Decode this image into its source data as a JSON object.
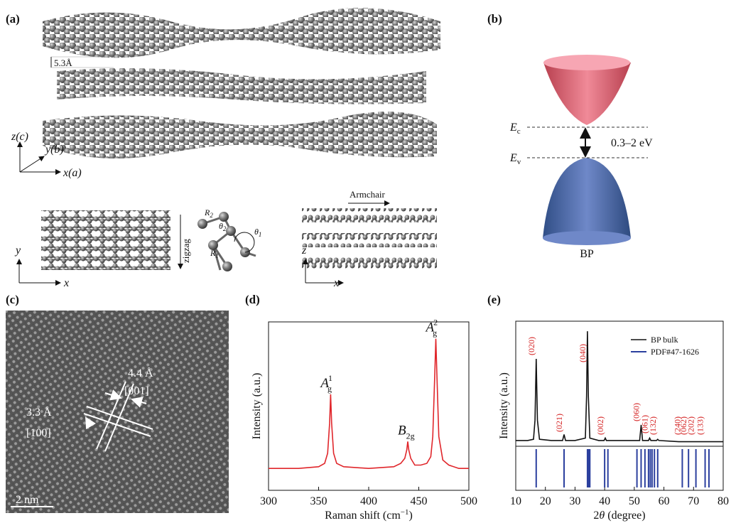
{
  "figure": {
    "panel_labels": [
      "(a)",
      "(b)",
      "(c)",
      "(d)",
      "(e)"
    ],
    "a": {
      "layer_spacing": "5.3Å",
      "axes": [
        "z(c)",
        "y(b)",
        "x(a)"
      ],
      "top_view_axes": [
        "y",
        "x"
      ],
      "zigzag": "zigzag",
      "bond_labels": [
        {
          "main": "R",
          "sub": "2"
        },
        {
          "main": "θ",
          "sub": "2"
        },
        {
          "main": "θ",
          "sub": "1"
        },
        {
          "main": "R",
          "sub": "1"
        }
      ],
      "armchair": "Armchair",
      "side_view_axes": [
        "z",
        "x"
      ]
    },
    "b": {
      "ec": {
        "main": "E",
        "sub": "c"
      },
      "ev": {
        "main": "E",
        "sub": "v"
      },
      "gap": "0.3–2 eV",
      "material": "BP"
    },
    "c": {
      "spacing_1": "4.4 Å",
      "direction_1": "[001]",
      "spacing_2": "3.3 Å",
      "direction_2": "[100]",
      "scale_bar": "2 nm"
    }
  },
  "chart_data": [
    {
      "type": "line",
      "xlabel": {
        "text": "Raman shift (cm",
        "sup": "−1",
        "tail": ")"
      },
      "ylabel": "Intensity (a.u.)",
      "x": [
        300,
        330,
        350,
        356,
        359,
        361,
        362,
        363,
        365,
        368,
        375,
        400,
        425,
        432,
        436,
        438,
        439,
        440,
        442,
        446,
        452,
        458,
        462,
        464,
        466,
        467,
        468,
        470,
        474,
        480,
        490,
        500
      ],
      "series": [
        {
          "color": "#e0262b",
          "values": [
            13,
            13,
            14,
            16,
            22,
            40,
            57,
            40,
            22,
            16,
            14,
            13,
            14,
            16,
            19,
            24,
            29,
            24,
            19,
            15,
            15,
            16,
            20,
            32,
            70,
            90,
            70,
            32,
            18,
            15,
            13,
            13
          ]
        }
      ],
      "annotations": [
        {
          "main": "A",
          "sub": "g",
          "sup": "1"
        },
        {
          "main": "B",
          "sub": "2g",
          "sup": null
        },
        {
          "main": "A",
          "sub": "g",
          "sup": "2"
        }
      ],
      "xlim": [
        300,
        500
      ],
      "xticks": [
        300,
        350,
        400,
        450,
        500
      ],
      "ylim": [
        0,
        100
      ]
    },
    {
      "type": "line",
      "xlabel": {
        "pre": "2",
        "var": "θ",
        "unit": " (degree)"
      },
      "ylabel": "Intensity (a.u.)",
      "x": [
        10,
        14,
        16,
        16.5,
        16.9,
        17.3,
        18,
        22,
        25.8,
        26.3,
        26.8,
        30,
        33.5,
        33.9,
        34.2,
        34.5,
        35,
        38,
        39.8,
        40.2,
        40.6,
        46,
        51.8,
        52.3,
        52.8,
        54.8,
        55.2,
        55.6,
        57.5,
        57.9,
        58.3,
        65,
        70,
        75,
        80
      ],
      "series": [
        {
          "name": "BP bulk",
          "color": "#111111",
          "values": [
            3,
            3,
            4,
            20,
            71,
            20,
            4,
            3,
            3,
            8,
            3,
            3,
            5,
            40,
            94,
            40,
            5,
            3,
            3,
            5,
            3,
            3,
            3,
            16,
            3,
            3,
            5,
            3,
            3,
            4,
            3,
            2,
            2,
            2,
            2
          ]
        }
      ],
      "reference": {
        "name": "PDF#47-1626",
        "color": "#2b3f9e",
        "x": [
          16.9,
          26.3,
          34.2,
          34.6,
          35.0,
          40.0,
          41.1,
          50.9,
          52.3,
          53.6,
          54.8,
          55.4,
          56.0,
          56.8,
          57.9,
          66.2,
          68.3,
          70.8,
          73.9,
          75.2
        ]
      },
      "peak_labels": [
        {
          "text": "(020)",
          "x": 16.9
        },
        {
          "text": "(021)",
          "x": 26.3
        },
        {
          "text": "(040)",
          "x": 34.2
        },
        {
          "text": "(002)",
          "x": 40.2
        },
        {
          "text": "(060)",
          "x": 52.3
        },
        {
          "text": "(061)",
          "x": 55.2
        },
        {
          "text": "(132)",
          "x": 57.9
        },
        {
          "text": "(240)",
          "x": 66.2
        },
        {
          "text": "(062)",
          "x": 68.3
        },
        {
          "text": "(202)",
          "x": 70.8
        },
        {
          "text": "(133)",
          "x": 73.9
        }
      ],
      "peak_label_color": "#d42020",
      "xlim": [
        10,
        80
      ],
      "xticks": [
        10,
        20,
        30,
        40,
        50,
        60,
        70,
        80
      ],
      "ylim": [
        0,
        100
      ]
    }
  ]
}
